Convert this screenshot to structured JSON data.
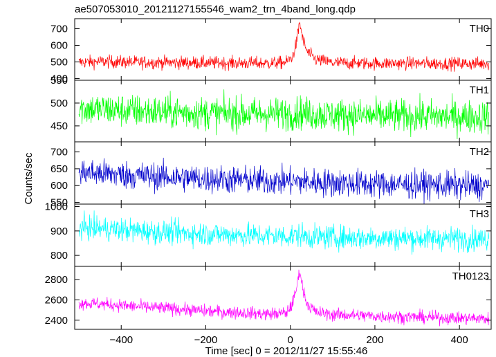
{
  "chart_data": {
    "type": "line",
    "title": "ae507053010_20121127155546_wam2_trn_4band_long.qdp",
    "xlabel": "Time [sec] 0 = 2012/11/27 15:55:46",
    "ylabel": "Counts/sec",
    "xlim": [
      -510,
      475
    ],
    "x_ticks": [
      -400,
      -200,
      0,
      200,
      400
    ],
    "x_tick_labels": [
      "−400",
      "−200",
      "0",
      "200",
      "400"
    ],
    "grid": false,
    "panels": [
      {
        "name": "TH0",
        "color": "#ff0000",
        "ylim": [
          390,
          760
        ],
        "y_ticks": [
          400,
          500,
          600,
          700
        ],
        "y_tick_labels": [
          "400",
          "500",
          "600",
          "700"
        ],
        "points": [
          [
            -500,
            498
          ],
          [
            -450,
            502
          ],
          [
            -400,
            500
          ],
          [
            -350,
            498
          ],
          [
            -300,
            497
          ],
          [
            -250,
            496
          ],
          [
            -200,
            495
          ],
          [
            -150,
            494
          ],
          [
            -100,
            493
          ],
          [
            -50,
            492
          ],
          [
            -10,
            497
          ],
          [
            5,
            530
          ],
          [
            15,
            620
          ],
          [
            22,
            740
          ],
          [
            30,
            630
          ],
          [
            40,
            560
          ],
          [
            60,
            515
          ],
          [
            100,
            495
          ],
          [
            150,
            493
          ],
          [
            200,
            492
          ],
          [
            250,
            492
          ],
          [
            300,
            491
          ],
          [
            350,
            490
          ],
          [
            400,
            490
          ],
          [
            450,
            490
          ],
          [
            470,
            490
          ]
        ],
        "noise": 28
      },
      {
        "name": "TH1",
        "color": "#00ff00",
        "ylim": [
          415,
          550
        ],
        "y_ticks": [
          450,
          500,
          550
        ],
        "y_tick_labels": [
          "450",
          "500",
          "550"
        ],
        "points": [
          [
            -500,
            488
          ],
          [
            -400,
            484
          ],
          [
            -300,
            480
          ],
          [
            -200,
            478
          ],
          [
            -100,
            476
          ],
          [
            0,
            476
          ],
          [
            22,
            480
          ],
          [
            40,
            476
          ],
          [
            100,
            474
          ],
          [
            200,
            472
          ],
          [
            300,
            471
          ],
          [
            400,
            470
          ],
          [
            470,
            470
          ]
        ],
        "noise": 26
      },
      {
        "name": "TH2",
        "color": "#0000cc",
        "ylim": [
          545,
          730
        ],
        "y_ticks": [
          550,
          600,
          650,
          700
        ],
        "y_tick_labels": [
          "550",
          "600",
          "650",
          "700"
        ],
        "points": [
          [
            -500,
            640
          ],
          [
            -400,
            632
          ],
          [
            -300,
            626
          ],
          [
            -200,
            620
          ],
          [
            -100,
            616
          ],
          [
            0,
            612
          ],
          [
            100,
            608
          ],
          [
            200,
            605
          ],
          [
            300,
            602
          ],
          [
            400,
            600
          ],
          [
            470,
            598
          ]
        ],
        "noise": 30
      },
      {
        "name": "TH3",
        "color": "#00ffff",
        "ylim": [
          755,
          1010
        ],
        "y_ticks": [
          800,
          900,
          1000
        ],
        "y_tick_labels": [
          "800",
          "900",
          "1000"
        ],
        "points": [
          [
            -500,
            915
          ],
          [
            -400,
            905
          ],
          [
            -300,
            895
          ],
          [
            -200,
            888
          ],
          [
            -100,
            882
          ],
          [
            0,
            878
          ],
          [
            22,
            885
          ],
          [
            40,
            876
          ],
          [
            100,
            874
          ],
          [
            200,
            872
          ],
          [
            300,
            870
          ],
          [
            400,
            868
          ],
          [
            470,
            866
          ]
        ],
        "noise": 35
      },
      {
        "name": "TH0123",
        "color": "#ff00ff",
        "ylim": [
          2310,
          2930
        ],
        "y_ticks": [
          2400,
          2600,
          2800
        ],
        "y_tick_labels": [
          "2400",
          "2600",
          "2800"
        ],
        "points": [
          [
            -500,
            2570
          ],
          [
            -450,
            2560
          ],
          [
            -400,
            2545
          ],
          [
            -350,
            2530
          ],
          [
            -300,
            2520
          ],
          [
            -250,
            2505
          ],
          [
            -200,
            2490
          ],
          [
            -150,
            2480
          ],
          [
            -100,
            2470
          ],
          [
            -50,
            2460
          ],
          [
            -10,
            2470
          ],
          [
            5,
            2560
          ],
          [
            15,
            2720
          ],
          [
            22,
            2900
          ],
          [
            30,
            2700
          ],
          [
            40,
            2560
          ],
          [
            60,
            2480
          ],
          [
            100,
            2455
          ],
          [
            150,
            2450
          ],
          [
            200,
            2440
          ],
          [
            250,
            2435
          ],
          [
            300,
            2430
          ],
          [
            350,
            2425
          ],
          [
            400,
            2420
          ],
          [
            470,
            2415
          ]
        ],
        "noise": 45
      }
    ]
  }
}
